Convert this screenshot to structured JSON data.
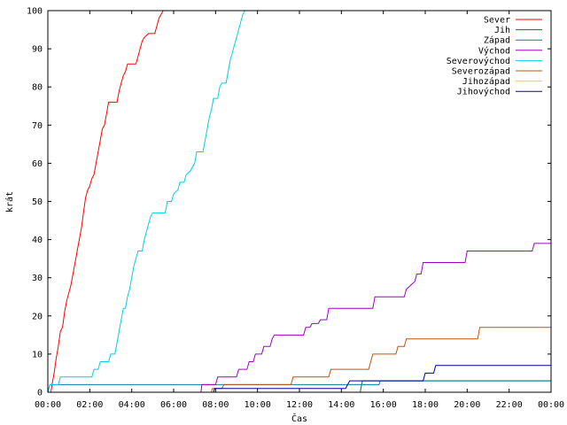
{
  "chart_data": {
    "type": "line",
    "xlabel": "Čas",
    "ylabel": "krát",
    "xlim": [
      0,
      24
    ],
    "ylim": [
      0,
      100
    ],
    "x_ticks": [
      {
        "value": 0,
        "label": "00:00"
      },
      {
        "value": 2,
        "label": "02:00"
      },
      {
        "value": 4,
        "label": "04:00"
      },
      {
        "value": 6,
        "label": "06:00"
      },
      {
        "value": 8,
        "label": "08:00"
      },
      {
        "value": 10,
        "label": "10:00"
      },
      {
        "value": 12,
        "label": "12:00"
      },
      {
        "value": 14,
        "label": "14:00"
      },
      {
        "value": 16,
        "label": "16:00"
      },
      {
        "value": 18,
        "label": "18:00"
      },
      {
        "value": 20,
        "label": "20:00"
      },
      {
        "value": 22,
        "label": "22:00"
      },
      {
        "value": 24,
        "label": "00:00"
      }
    ],
    "y_ticks": [
      {
        "value": 0,
        "label": "0"
      },
      {
        "value": 10,
        "label": "10"
      },
      {
        "value": 20,
        "label": "20"
      },
      {
        "value": 30,
        "label": "30"
      },
      {
        "value": 40,
        "label": "40"
      },
      {
        "value": 50,
        "label": "50"
      },
      {
        "value": 60,
        "label": "60"
      },
      {
        "value": 70,
        "label": "70"
      },
      {
        "value": 80,
        "label": "80"
      },
      {
        "value": 90,
        "label": "90"
      },
      {
        "value": 100,
        "label": "100"
      }
    ],
    "grid": false,
    "legend_position": "top-right",
    "series": [
      {
        "name": "Sever",
        "color": "#ff0000",
        "points": [
          [
            0,
            0
          ],
          [
            0.15,
            0
          ],
          [
            0.2,
            2
          ],
          [
            0.3,
            5
          ],
          [
            0.4,
            9
          ],
          [
            0.5,
            12
          ],
          [
            0.6,
            16
          ],
          [
            0.7,
            17
          ],
          [
            0.8,
            21
          ],
          [
            0.9,
            24
          ],
          [
            1.0,
            26
          ],
          [
            1.1,
            28
          ],
          [
            1.2,
            31
          ],
          [
            1.3,
            34
          ],
          [
            1.4,
            37
          ],
          [
            1.5,
            40
          ],
          [
            1.6,
            43
          ],
          [
            1.7,
            47
          ],
          [
            1.8,
            51
          ],
          [
            1.9,
            53
          ],
          [
            2.0,
            54
          ],
          [
            2.1,
            56
          ],
          [
            2.2,
            57
          ],
          [
            2.3,
            60
          ],
          [
            2.4,
            63
          ],
          [
            2.5,
            66
          ],
          [
            2.6,
            69
          ],
          [
            2.7,
            70
          ],
          [
            2.8,
            73
          ],
          [
            2.9,
            76
          ],
          [
            3.3,
            76
          ],
          [
            3.4,
            79
          ],
          [
            3.5,
            81
          ],
          [
            3.6,
            83
          ],
          [
            3.7,
            84
          ],
          [
            3.8,
            86
          ],
          [
            4.2,
            86
          ],
          [
            4.3,
            88
          ],
          [
            4.4,
            90
          ],
          [
            4.5,
            92
          ],
          [
            4.6,
            93
          ],
          [
            4.8,
            94
          ],
          [
            5.1,
            94
          ],
          [
            5.2,
            96
          ],
          [
            5.3,
            98
          ],
          [
            5.4,
            99
          ],
          [
            5.5,
            100
          ]
        ]
      },
      {
        "name": "Jih",
        "color": "#008000",
        "points": [
          [
            14.9,
            0
          ],
          [
            15.0,
            3
          ],
          [
            24,
            3
          ]
        ]
      },
      {
        "name": "Západ",
        "color": "#0080a0",
        "points": [
          [
            0,
            0
          ],
          [
            0.1,
            2
          ],
          [
            13.9,
            2
          ],
          [
            14.0,
            2
          ],
          [
            15.8,
            2
          ],
          [
            15.85,
            3
          ],
          [
            24,
            3
          ]
        ]
      },
      {
        "name": "Východ",
        "color": "#a000c0",
        "points": [
          [
            7.3,
            0
          ],
          [
            7.35,
            2
          ],
          [
            8.0,
            2
          ],
          [
            8.1,
            4
          ],
          [
            9.0,
            4
          ],
          [
            9.1,
            6
          ],
          [
            9.5,
            6
          ],
          [
            9.6,
            8
          ],
          [
            9.8,
            8
          ],
          [
            9.9,
            10
          ],
          [
            10.2,
            10
          ],
          [
            10.3,
            12
          ],
          [
            10.6,
            12
          ],
          [
            10.7,
            14
          ],
          [
            10.8,
            15
          ],
          [
            12.2,
            15
          ],
          [
            12.3,
            17
          ],
          [
            12.5,
            17
          ],
          [
            12.6,
            18
          ],
          [
            12.9,
            18
          ],
          [
            13.0,
            19
          ],
          [
            13.3,
            19
          ],
          [
            13.4,
            22
          ],
          [
            15.5,
            22
          ],
          [
            15.6,
            25
          ],
          [
            17.0,
            25
          ],
          [
            17.1,
            27
          ],
          [
            17.3,
            28
          ],
          [
            17.5,
            29
          ],
          [
            17.6,
            31
          ],
          [
            17.8,
            31
          ],
          [
            17.9,
            34
          ],
          [
            19.9,
            34
          ],
          [
            20.0,
            37
          ],
          [
            23.1,
            37
          ],
          [
            23.2,
            39
          ],
          [
            24,
            39
          ]
        ]
      },
      {
        "name": "Severovýchod",
        "color": "#00d0e0",
        "points": [
          [
            0,
            0
          ],
          [
            0.1,
            2
          ],
          [
            0.5,
            2
          ],
          [
            0.6,
            4
          ],
          [
            2.1,
            4
          ],
          [
            2.2,
            6
          ],
          [
            2.4,
            6
          ],
          [
            2.5,
            8
          ],
          [
            2.9,
            8
          ],
          [
            3.0,
            10
          ],
          [
            3.2,
            10
          ],
          [
            3.3,
            13
          ],
          [
            3.4,
            16
          ],
          [
            3.5,
            19
          ],
          [
            3.6,
            22
          ],
          [
            3.7,
            22
          ],
          [
            3.8,
            25
          ],
          [
            3.9,
            27
          ],
          [
            4.0,
            30
          ],
          [
            4.1,
            33
          ],
          [
            4.2,
            35
          ],
          [
            4.3,
            37
          ],
          [
            4.5,
            37
          ],
          [
            4.6,
            40
          ],
          [
            4.7,
            42
          ],
          [
            4.8,
            44
          ],
          [
            4.9,
            46
          ],
          [
            5.0,
            47
          ],
          [
            5.6,
            47
          ],
          [
            5.7,
            50
          ],
          [
            5.9,
            50
          ],
          [
            6.0,
            52
          ],
          [
            6.2,
            53
          ],
          [
            6.3,
            55
          ],
          [
            6.5,
            55
          ],
          [
            6.6,
            57
          ],
          [
            6.8,
            58
          ],
          [
            7.0,
            60
          ],
          [
            7.1,
            63
          ],
          [
            7.4,
            63
          ],
          [
            7.5,
            66
          ],
          [
            7.6,
            69
          ],
          [
            7.7,
            72
          ],
          [
            7.8,
            74
          ],
          [
            7.9,
            77
          ],
          [
            8.1,
            77
          ],
          [
            8.2,
            80
          ],
          [
            8.3,
            81
          ],
          [
            8.5,
            81
          ],
          [
            8.6,
            84
          ],
          [
            8.7,
            87
          ],
          [
            8.8,
            89
          ],
          [
            8.9,
            91
          ],
          [
            9.0,
            93
          ],
          [
            9.1,
            95
          ],
          [
            9.2,
            97
          ],
          [
            9.3,
            99
          ],
          [
            9.4,
            100
          ]
        ]
      },
      {
        "name": "Severozápad",
        "color": "#c05010",
        "points": [
          [
            7.8,
            0
          ],
          [
            7.85,
            1
          ],
          [
            8.3,
            1
          ],
          [
            8.4,
            2
          ],
          [
            11.6,
            2
          ],
          [
            11.7,
            4
          ],
          [
            13.4,
            4
          ],
          [
            13.5,
            6
          ],
          [
            15.3,
            6
          ],
          [
            15.4,
            8
          ],
          [
            15.5,
            10
          ],
          [
            16.6,
            10
          ],
          [
            16.7,
            12
          ],
          [
            17.0,
            12
          ],
          [
            17.1,
            14
          ],
          [
            20.5,
            14
          ],
          [
            20.6,
            17
          ],
          [
            24,
            17
          ]
        ]
      },
      {
        "name": "Jihozápad",
        "color": "#f0e000",
        "points": []
      },
      {
        "name": "Jihovýchod",
        "color": "#0000a0",
        "points": [
          [
            7.9,
            0
          ],
          [
            7.95,
            1
          ],
          [
            14.2,
            1
          ],
          [
            14.3,
            2
          ],
          [
            14.4,
            3
          ],
          [
            17.9,
            3
          ],
          [
            18.0,
            5
          ],
          [
            18.4,
            5
          ],
          [
            18.5,
            7
          ],
          [
            24,
            7
          ]
        ]
      }
    ]
  }
}
